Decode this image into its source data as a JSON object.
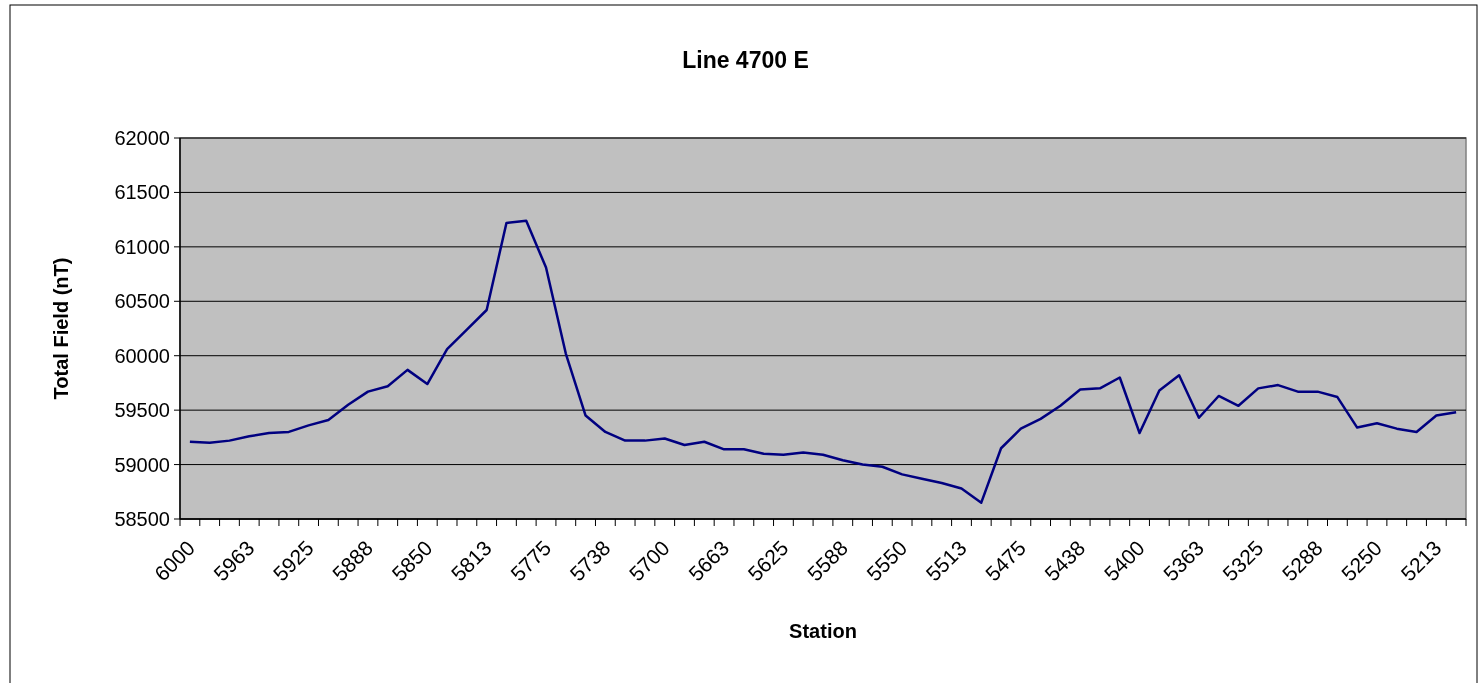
{
  "chart_data": {
    "type": "line",
    "title": "Line 4700 E",
    "xlabel": "Station",
    "ylabel": "Total Field (nT)",
    "categories": [
      "6000",
      null,
      null,
      "5963",
      null,
      null,
      "5925",
      null,
      null,
      "5888",
      null,
      null,
      "5850",
      null,
      null,
      "5813",
      null,
      null,
      "5775",
      null,
      null,
      "5738",
      null,
      null,
      "5700",
      null,
      null,
      "5663",
      null,
      null,
      "5625",
      null,
      null,
      "5588",
      null,
      null,
      "5550",
      null,
      null,
      "5513",
      null,
      null,
      "5475",
      null,
      null,
      "5438",
      null,
      null,
      "5400",
      null,
      null,
      "5363",
      null,
      null,
      "5325",
      null,
      null,
      "5288",
      null,
      null,
      "5250",
      null,
      null,
      "5213",
      null
    ],
    "series": [
      {
        "color": "#000080",
        "values": [
          59210,
          59200,
          59220,
          59260,
          59290,
          59300,
          59360,
          59410,
          59550,
          59670,
          59720,
          59870,
          59740,
          60060,
          60240,
          60420,
          61220,
          61240,
          60810,
          60020,
          59450,
          59300,
          59220,
          59220,
          59240,
          59180,
          59210,
          59140,
          59140,
          59100,
          59090,
          59110,
          59090,
          59040,
          59000,
          58980,
          58910,
          58870,
          58830,
          58780,
          58650,
          59150,
          59330,
          59420,
          59540,
          59690,
          59700,
          59800,
          59290,
          59680,
          59820,
          59430,
          59630,
          59540,
          59700,
          59730,
          59670,
          59670,
          59620,
          59340,
          59380,
          59330,
          59300,
          59450,
          59480
        ]
      }
    ],
    "ylim": [
      58500,
      62000
    ],
    "yticks": [
      58500,
      59000,
      59500,
      60000,
      60500,
      61000,
      61500,
      62000
    ],
    "grid": "y"
  }
}
